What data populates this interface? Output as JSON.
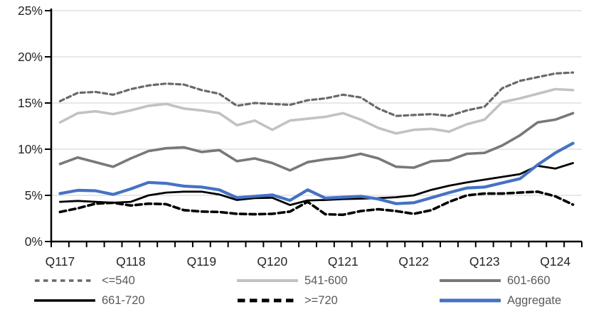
{
  "chart_data": {
    "type": "line",
    "title": "",
    "xlabel": "",
    "ylabel": "",
    "ylim": [
      0,
      25
    ],
    "y_tick_step": 5,
    "y_tick_labels": [
      "0%",
      "5%",
      "10%",
      "15%",
      "20%",
      "25%"
    ],
    "x_tick_labels": [
      "Q117",
      "Q118",
      "Q119",
      "Q120",
      "Q121",
      "Q122",
      "Q123",
      "Q124"
    ],
    "points_per_x_label": 4,
    "n_points": 30,
    "grid": "horizontal",
    "gridline_color": "#D9D9D9",
    "axis_color": "#000000",
    "tick_label_color": "#262626",
    "legend_position": "bottom",
    "legend_text_color": "#595959",
    "series": [
      {
        "name": "<=540",
        "color": "#696969",
        "dash": "small",
        "values": [
          15.2,
          16.1,
          16.2,
          15.9,
          16.5,
          16.9,
          17.1,
          17.0,
          16.4,
          16.0,
          14.7,
          15.0,
          14.9,
          14.8,
          15.3,
          15.5,
          15.9,
          15.6,
          14.4,
          13.6,
          13.7,
          13.8,
          13.6,
          14.2,
          14.6,
          16.6,
          17.4,
          17.8,
          18.2,
          18.3
        ]
      },
      {
        "name": "541-600",
        "color": "#C2C2C2",
        "dash": "none",
        "values": [
          12.9,
          13.9,
          14.1,
          13.8,
          14.2,
          14.7,
          14.9,
          14.4,
          14.2,
          13.9,
          12.6,
          13.1,
          12.1,
          13.1,
          13.3,
          13.5,
          13.9,
          13.2,
          12.3,
          11.7,
          12.1,
          12.2,
          11.9,
          12.7,
          13.2,
          15.1,
          15.5,
          16.0,
          16.5,
          16.4
        ]
      },
      {
        "name": "601-660",
        "color": "#787878",
        "dash": "none",
        "values": [
          8.4,
          9.1,
          8.6,
          8.1,
          9.0,
          9.8,
          10.1,
          10.2,
          9.7,
          9.9,
          8.7,
          9.0,
          8.5,
          7.7,
          8.6,
          8.9,
          9.1,
          9.5,
          9.0,
          8.1,
          8.0,
          8.7,
          8.8,
          9.5,
          9.6,
          10.4,
          11.5,
          12.9,
          13.2,
          13.9
        ]
      },
      {
        "name": "661-720",
        "color": "#000000",
        "dash": "none",
        "values": [
          4.3,
          4.4,
          4.3,
          4.2,
          4.3,
          5.0,
          5.3,
          5.4,
          5.4,
          5.1,
          4.5,
          4.7,
          4.75,
          3.95,
          4.45,
          4.5,
          4.6,
          4.65,
          4.7,
          4.8,
          5.0,
          5.6,
          6.05,
          6.4,
          6.7,
          7.0,
          7.3,
          8.2,
          7.9,
          8.5
        ]
      },
      {
        "name": ">=720",
        "color": "#000000",
        "dash": "long",
        "values": [
          3.2,
          3.6,
          4.1,
          4.2,
          3.9,
          4.1,
          4.05,
          3.4,
          3.25,
          3.2,
          3.0,
          2.95,
          3.0,
          3.25,
          4.3,
          2.95,
          2.9,
          3.3,
          3.5,
          3.3,
          3.0,
          3.4,
          4.3,
          5.0,
          5.2,
          5.2,
          5.3,
          5.4,
          4.9,
          4.0
        ]
      },
      {
        "name": "Aggregate",
        "color": "#4472C4",
        "dash": "none",
        "values": [
          5.2,
          5.55,
          5.5,
          5.1,
          5.7,
          6.4,
          6.3,
          6.0,
          5.9,
          5.6,
          4.75,
          4.9,
          5.05,
          4.45,
          5.6,
          4.7,
          4.8,
          4.9,
          4.6,
          4.1,
          4.2,
          4.75,
          5.3,
          5.8,
          5.9,
          6.35,
          6.8,
          8.3,
          9.6,
          10.65
        ]
      }
    ]
  }
}
